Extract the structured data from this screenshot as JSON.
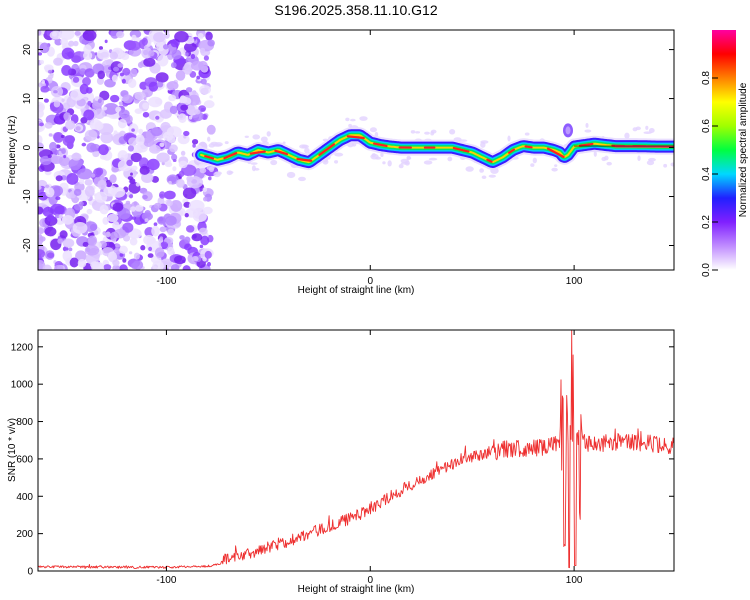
{
  "title": "S196.2025.358.11.10.G12",
  "chart_data": [
    {
      "type": "heatmap",
      "name": "spectrogram",
      "xlabel": "Height of straight line (km)",
      "ylabel": "Frequency (Hz)",
      "xlim": [
        -163,
        149
      ],
      "ylim": [
        -25,
        24
      ],
      "xticks": [
        -100,
        0,
        100
      ],
      "yticks": [
        -20,
        -10,
        0,
        10,
        20
      ],
      "xtick_labels": [
        "-100",
        "0",
        "100"
      ],
      "ytick_labels": [
        "-20",
        "-10",
        "0",
        "10",
        "20"
      ],
      "colorbar": {
        "label": "Normalized spectral amplitude",
        "range": [
          0,
          1
        ],
        "ticks": [
          0.0,
          0.2,
          0.4,
          0.6,
          0.8
        ],
        "tick_labels": [
          "0.0",
          "0.2",
          "0.4",
          "0.6",
          "0.8"
        ],
        "colormap": [
          "#ffffff",
          "#c08cff",
          "#8020ff",
          "#2020ff",
          "#00d8ff",
          "#00ff40",
          "#a0ff00",
          "#ffff00",
          "#ff8000",
          "#ff0000",
          "#ff00a0"
        ]
      },
      "noise_region_x": [
        -163,
        -80
      ],
      "ridge": {
        "x": [
          -83,
          -75,
          -70,
          -65,
          -60,
          -55,
          -50,
          -45,
          -40,
          -35,
          -30,
          -25,
          -20,
          -15,
          -10,
          -5,
          0,
          5,
          10,
          15,
          20,
          30,
          40,
          45,
          50,
          55,
          60,
          65,
          70,
          75,
          80,
          85,
          90,
          93,
          95,
          97,
          100,
          105,
          110,
          120,
          130,
          140,
          149
        ],
        "y": [
          -1.5,
          -2.5,
          -2,
          -1,
          -1.5,
          -0.5,
          -1,
          -0.5,
          -1.5,
          -2.5,
          -3,
          -1.5,
          0,
          1.5,
          2.5,
          2.5,
          1,
          0.5,
          0.2,
          0,
          0,
          0,
          0,
          -0.5,
          -1,
          -2,
          -3,
          -2,
          -0.5,
          0.3,
          0,
          0,
          -0.5,
          -1,
          -2,
          -1.5,
          0.2,
          0.5,
          0.8,
          0.3,
          0.3,
          0.2,
          0.2
        ]
      }
    },
    {
      "type": "line",
      "name": "snr",
      "xlabel": "Height of straight line (km)",
      "ylabel": "SNR (10 * v/v)",
      "xlim": [
        -163,
        149
      ],
      "ylim": [
        0,
        1290
      ],
      "xticks": [
        -100,
        0,
        100
      ],
      "yticks": [
        0,
        200,
        400,
        600,
        800,
        1000,
        1200
      ],
      "xtick_labels": [
        "-100",
        "0",
        "100"
      ],
      "ytick_labels": [
        "0",
        "200",
        "400",
        "600",
        "800",
        "1000",
        "1200"
      ],
      "color": "#ee3030",
      "trend": {
        "x": [
          -163,
          -140,
          -120,
          -100,
          -90,
          -80,
          -75,
          -70,
          -60,
          -50,
          -40,
          -30,
          -20,
          -10,
          0,
          10,
          20,
          30,
          40,
          50,
          60,
          70,
          80,
          90,
          100,
          110,
          120,
          130,
          140,
          149
        ],
        "y": [
          22,
          22,
          20,
          20,
          22,
          25,
          35,
          70,
          90,
          130,
          160,
          200,
          240,
          280,
          330,
          400,
          460,
          520,
          570,
          610,
          640,
          655,
          660,
          675,
          690,
          680,
          690,
          690,
          680,
          670
        ]
      },
      "spikes": {
        "x": [
          94,
          96,
          98,
          99,
          100,
          101,
          102,
          103
        ],
        "y": [
          990,
          150,
          940,
          20,
          1290,
          30,
          860,
          300
        ]
      }
    }
  ]
}
